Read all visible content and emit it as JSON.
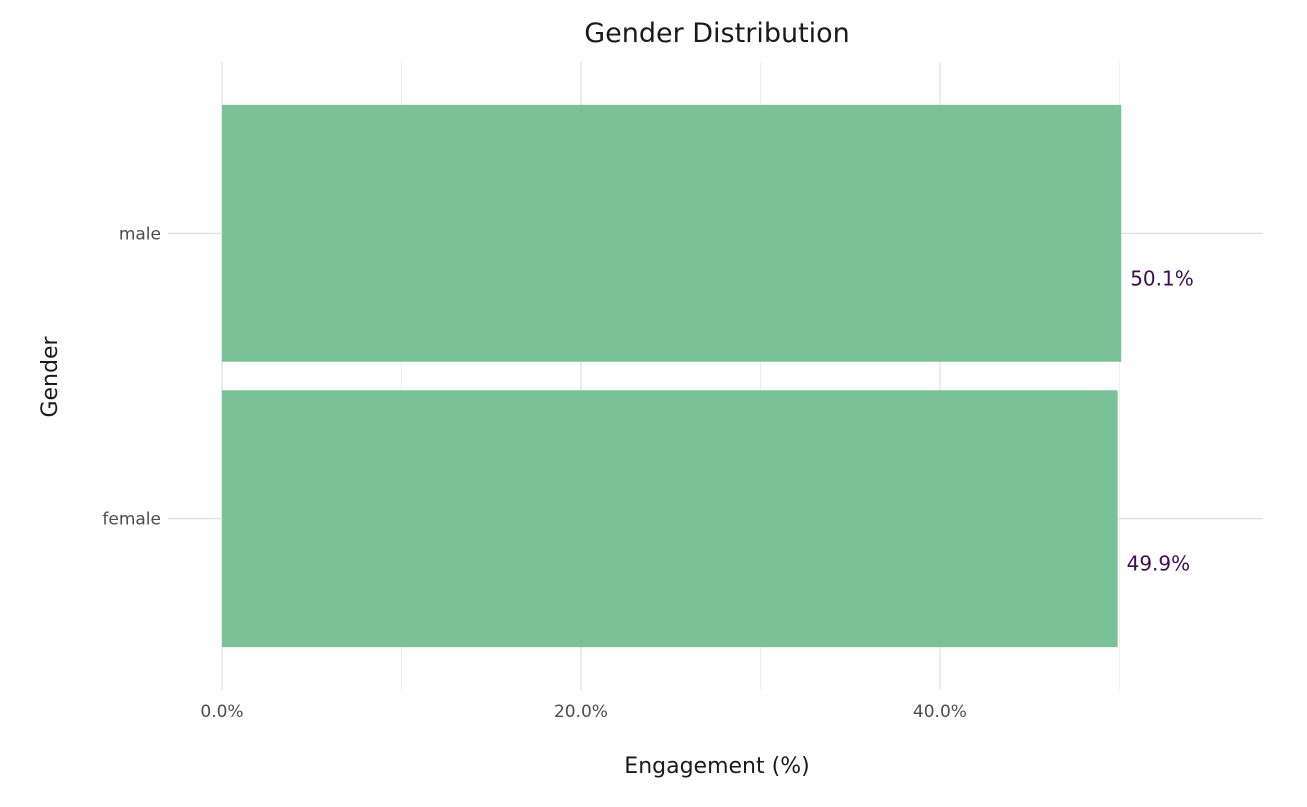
{
  "chart_data": {
    "type": "bar",
    "orientation": "horizontal",
    "title": "Gender Distribution",
    "xlabel": "Engagement (%)",
    "ylabel": "Gender",
    "categories": [
      "female",
      "male"
    ],
    "values": [
      49.9,
      50.1
    ],
    "data_labels": [
      "49.9%",
      "50.1%"
    ],
    "xlim": [
      0,
      58
    ],
    "x_ticks": [
      0,
      20,
      40
    ],
    "x_tick_labels": [
      "0.0%",
      "20.0%",
      "40.0%"
    ],
    "x_minor_ticks": [
      10,
      30,
      50
    ],
    "grid": true,
    "legend": "none",
    "colors": {
      "bar": "#79C297",
      "label": "#3B0F4F",
      "grid_major": "#D9D9D9",
      "grid_minor": "#EEEEEE"
    }
  }
}
